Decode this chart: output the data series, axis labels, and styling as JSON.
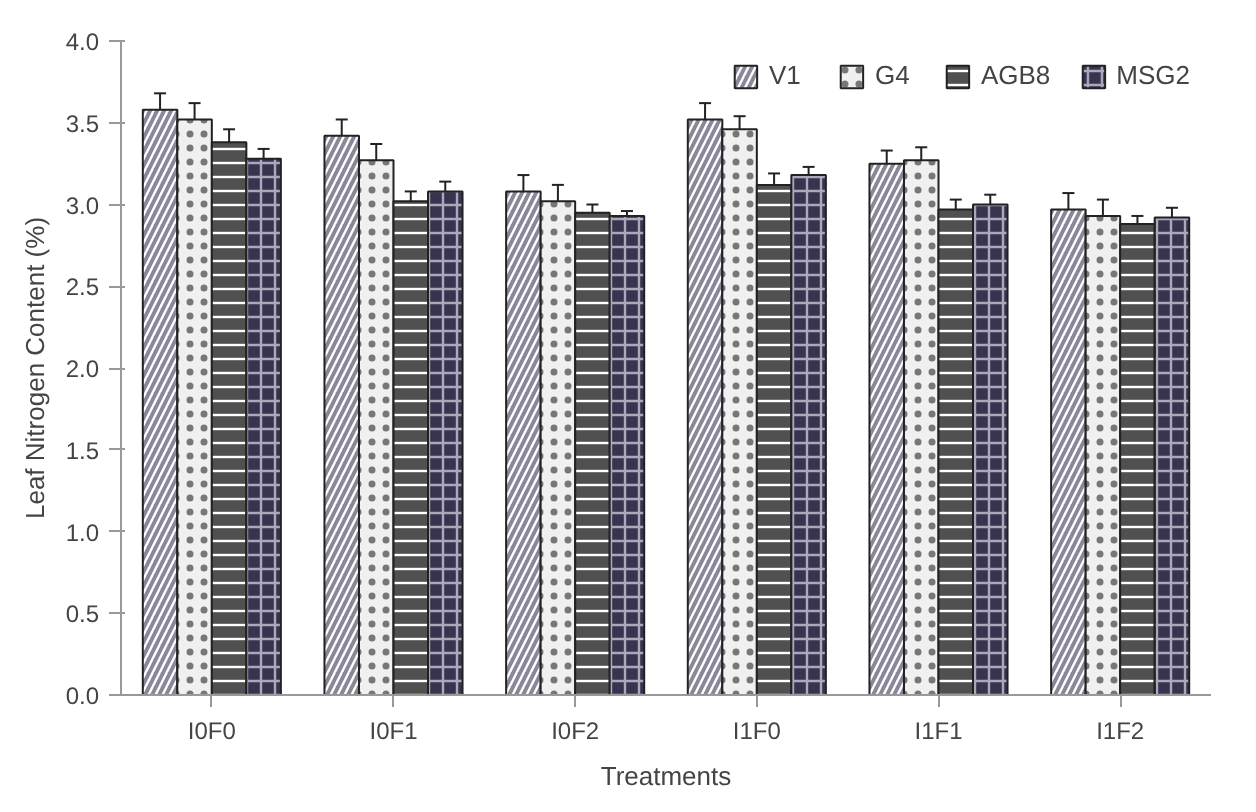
{
  "chart_data": {
    "type": "bar",
    "xlabel": "Treatments",
    "ylabel": "Leaf Nitrogen Content (%)",
    "categories": [
      "I0F0",
      "I0F1",
      "I0F2",
      "I1F0",
      "I1F1",
      "I1F2"
    ],
    "series": [
      {
        "name": "V1",
        "color": "#8a8798",
        "values": [
          3.58,
          3.42,
          3.08,
          3.52,
          3.25,
          2.97
        ],
        "errors": [
          0.1,
          0.1,
          0.1,
          0.1,
          0.08,
          0.1
        ]
      },
      {
        "name": "G4",
        "color": "#f0f0f0",
        "values": [
          3.52,
          3.27,
          3.02,
          3.46,
          3.27,
          2.93
        ],
        "errors": [
          0.1,
          0.1,
          0.1,
          0.08,
          0.08,
          0.1
        ]
      },
      {
        "name": "AGB8",
        "color": "#505050",
        "values": [
          3.38,
          3.02,
          2.95,
          3.12,
          2.97,
          2.88
        ],
        "errors": [
          0.08,
          0.06,
          0.05,
          0.07,
          0.06,
          0.05
        ]
      },
      {
        "name": "MSG2",
        "color": "#3a3350",
        "values": [
          3.28,
          3.08,
          2.93,
          3.18,
          3.0,
          2.92
        ],
        "errors": [
          0.06,
          0.06,
          0.03,
          0.05,
          0.06,
          0.06
        ]
      }
    ],
    "ylim": [
      0,
      4
    ],
    "yticks": [
      {
        "value": 0,
        "label": "0.0"
      },
      {
        "value": 0.5,
        "label": "0.5"
      },
      {
        "value": 1,
        "label": "1.0"
      },
      {
        "value": 1.5,
        "label": "1.5"
      },
      {
        "value": 2,
        "label": "2.0"
      },
      {
        "value": 2.5,
        "label": "2.5"
      },
      {
        "value": 3,
        "label": "3.0"
      },
      {
        "value": 3.5,
        "label": "3.5"
      },
      {
        "value": 4,
        "label": "4.0"
      }
    ],
    "grid": false,
    "legend": "top right"
  }
}
